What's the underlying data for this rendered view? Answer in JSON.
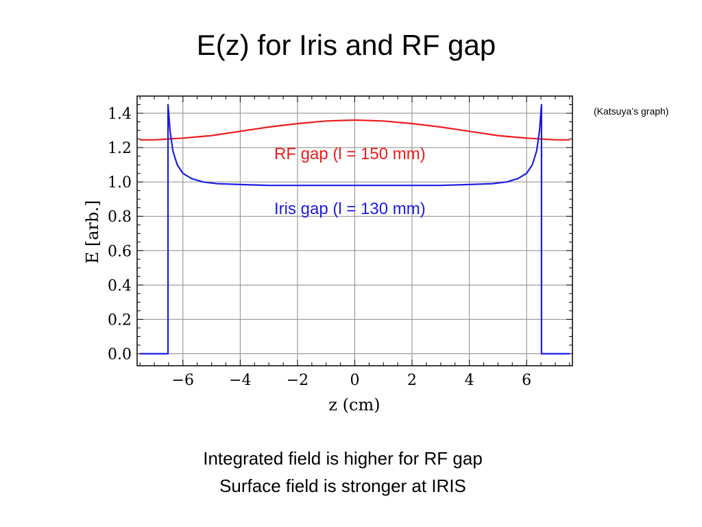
{
  "slide": {
    "title": "E(z) for Iris and RF gap",
    "note": "(Katsuya’s graph)",
    "caption_line1": "Integrated field is higher for RF gap",
    "caption_line2": "Surface field is stronger at IRIS"
  },
  "chart_data": {
    "type": "line",
    "xlabel": "z (cm)",
    "ylabel": "E [arb.]",
    "xlim": [
      -7.6,
      7.6
    ],
    "ylim": [
      -0.07,
      1.5
    ],
    "xticks": [
      -6,
      -4,
      -2,
      0,
      2,
      4,
      6
    ],
    "xtick_labels": [
      "−6",
      "−4",
      "−2",
      "0",
      "2",
      "4",
      "6"
    ],
    "yticks": [
      0.0,
      0.2,
      0.4,
      0.6,
      0.8,
      1.0,
      1.2,
      1.4
    ],
    "ytick_labels": [
      "0.0",
      "0.2",
      "0.4",
      "0.6",
      "0.8",
      "1.0",
      "1.2",
      "1.4"
    ],
    "grid": true,
    "series": [
      {
        "name": "RF gap (l = 150 mm)",
        "color": "#ee1c1c",
        "x": [
          -7.5,
          -7,
          -6,
          -5,
          -4,
          -3,
          -2,
          -1,
          0,
          1,
          2,
          3,
          4,
          5,
          6,
          7,
          7.5
        ],
        "y": [
          1.245,
          1.245,
          1.255,
          1.27,
          1.295,
          1.32,
          1.34,
          1.355,
          1.36,
          1.355,
          1.34,
          1.32,
          1.295,
          1.27,
          1.255,
          1.245,
          1.245
        ]
      },
      {
        "name": "Iris gap (l = 130 mm)",
        "color": "#1a1ae6",
        "x": [
          -7.5,
          -6.52,
          -6.52,
          -6.45,
          -6.35,
          -6.2,
          -6.0,
          -5.7,
          -5.3,
          -4.8,
          -4.0,
          -3.0,
          -2.0,
          -1.0,
          0,
          1.0,
          2.0,
          3.0,
          4.0,
          4.8,
          5.3,
          5.7,
          6.0,
          6.2,
          6.35,
          6.45,
          6.52,
          6.52,
          7.5
        ],
        "y": [
          0.0,
          0.0,
          1.45,
          1.3,
          1.18,
          1.1,
          1.05,
          1.02,
          1.0,
          0.99,
          0.985,
          0.98,
          0.98,
          0.98,
          0.98,
          0.98,
          0.98,
          0.98,
          0.985,
          0.99,
          1.0,
          1.02,
          1.05,
          1.1,
          1.18,
          1.3,
          1.45,
          0.0,
          0.0
        ]
      }
    ]
  }
}
